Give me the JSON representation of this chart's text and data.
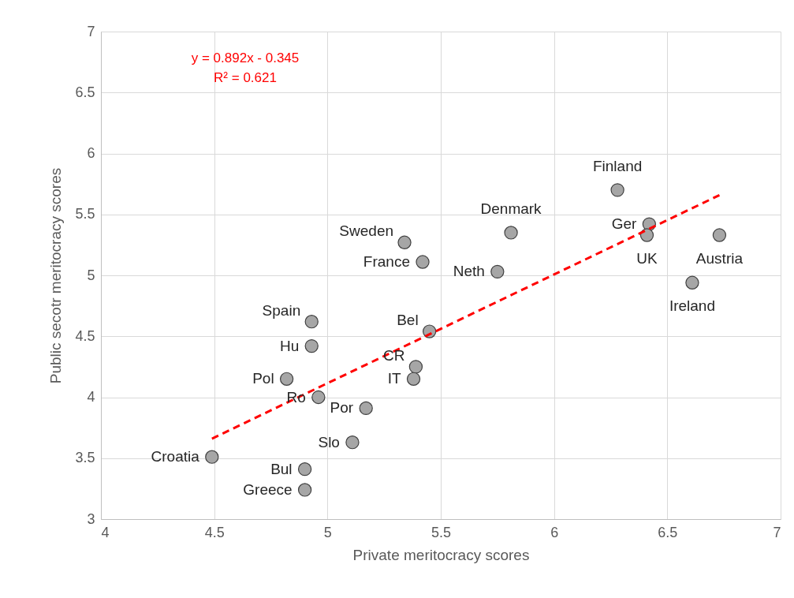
{
  "chart_data": {
    "type": "scatter",
    "xlabel": "Private meritocracy scores",
    "ylabel": "Public secotr meritocracy scores",
    "xlim": [
      4,
      7
    ],
    "xticks": [
      4,
      4.5,
      5,
      5.5,
      6,
      6.5,
      7
    ],
    "ylim": [
      3,
      7
    ],
    "yticks": [
      3,
      3.5,
      4,
      4.5,
      5,
      5.5,
      6,
      6.5,
      7
    ],
    "grid": true,
    "series": [
      {
        "color": "#a6a6a6",
        "marker": "circle",
        "x": [
          6.28,
          6.42,
          6.41,
          6.73,
          6.61,
          5.81,
          5.75,
          5.34,
          5.42,
          5.45,
          5.39,
          5.38,
          4.93,
          4.93,
          4.82,
          4.96,
          5.17,
          5.11,
          4.49,
          4.9,
          4.9
        ],
        "values": [
          5.7,
          5.42,
          5.33,
          5.33,
          4.94,
          5.35,
          5.03,
          5.27,
          5.11,
          4.54,
          4.25,
          4.15,
          4.62,
          4.42,
          4.15,
          4.0,
          3.91,
          3.63,
          3.51,
          3.41,
          3.24
        ]
      },
      {
        "type": "line",
        "color": "#ff0000",
        "line_style": "dashed",
        "x": [
          4.49,
          6.73
        ],
        "values": [
          3.66,
          5.658
        ]
      }
    ],
    "annotations": [
      "y = 0.892x - 0.345",
      "R² = 0.621",
      {
        "text": "Finland",
        "x": 6.28,
        "y": 5.7
      },
      {
        "text": "Ger",
        "x": 6.42,
        "y": 5.42
      },
      {
        "text": "UK",
        "x": 6.41,
        "y": 5.33
      },
      {
        "text": "Austria",
        "x": 6.73,
        "y": 5.33
      },
      {
        "text": "Ireland",
        "x": 6.61,
        "y": 4.94
      },
      {
        "text": "Denmark",
        "x": 5.81,
        "y": 5.35
      },
      {
        "text": "Neth",
        "x": 5.75,
        "y": 5.03
      },
      {
        "text": "Sweden",
        "x": 5.34,
        "y": 5.27
      },
      {
        "text": "France",
        "x": 5.42,
        "y": 5.11
      },
      {
        "text": "Bel",
        "x": 5.45,
        "y": 4.54
      },
      {
        "text": "CR",
        "x": 5.39,
        "y": 4.25
      },
      {
        "text": "IT",
        "x": 5.38,
        "y": 4.15
      },
      {
        "text": "Spain",
        "x": 4.93,
        "y": 4.62
      },
      {
        "text": "Hu",
        "x": 4.93,
        "y": 4.42
      },
      {
        "text": "Pol",
        "x": 4.82,
        "y": 4.15
      },
      {
        "text": "Ro",
        "x": 4.96,
        "y": 4.0
      },
      {
        "text": "Por",
        "x": 5.17,
        "y": 3.91
      },
      {
        "text": "Slo",
        "x": 5.11,
        "y": 3.63
      },
      {
        "text": "Croatia",
        "x": 4.49,
        "y": 3.51
      },
      {
        "text": "Bul",
        "x": 4.9,
        "y": 3.41
      },
      {
        "text": "Greece",
        "x": 4.9,
        "y": 3.24
      }
    ]
  }
}
